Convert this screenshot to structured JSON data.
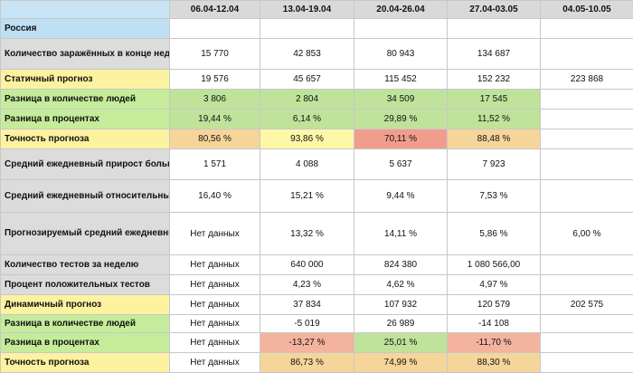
{
  "columns": [
    "",
    "06.04-12.04",
    "13.04-19.04",
    "20.04-26.04",
    "27.04-03.05",
    "04.05-10.05"
  ],
  "section_title": "Россия",
  "rows": [
    {
      "label": "Количество заражённых в конце недели",
      "values": [
        "15 770",
        "42 853",
        "80 943",
        "134 687",
        ""
      ]
    },
    {
      "label": "Статичный прогноз",
      "values": [
        "19 576",
        "45 657",
        "115 452",
        "152 232",
        "223 868"
      ]
    },
    {
      "label": "Разница в количестве людей",
      "values": [
        "3 806",
        "2 804",
        "34 509",
        "17 545",
        ""
      ]
    },
    {
      "label": "Разница в процентах",
      "values": [
        "19,44 %",
        "6,14 %",
        "29,89 %",
        "11,52 %",
        ""
      ]
    },
    {
      "label": "Точность прогноза",
      "values": [
        "80,56 %",
        "93,86 %",
        "70,11 %",
        "88,48 %",
        ""
      ]
    },
    {
      "label": "Средний ежедневный прирост больных",
      "values": [
        "1 571",
        "4 088",
        "5 637",
        "7 923",
        ""
      ]
    },
    {
      "label": "Средний ежедневный относительный рост",
      "values": [
        "16,40 %",
        "15,21 %",
        "9,44 %",
        "7,53 %",
        ""
      ]
    },
    {
      "label": "Прогнозируемый средний ежедневный  относительный рост",
      "values": [
        "Нет данных",
        "13,32 %",
        "14,11 %",
        "5,86 %",
        "6,00 %"
      ]
    },
    {
      "label": "Количество тестов за неделю",
      "values": [
        "Нет данных",
        "640 000",
        "824 380",
        "1 080 566,00",
        ""
      ]
    },
    {
      "label": "Процент положительных тестов",
      "values": [
        "Нет данных",
        "4,23 %",
        "4,62 %",
        "4,97 %",
        ""
      ]
    },
    {
      "label": "Динамичный прогноз",
      "values": [
        "Нет данных",
        "37 834",
        "107 932",
        "120 579",
        "202 575"
      ]
    },
    {
      "label": "Разница в количестве людей",
      "values": [
        "Нет данных",
        "-5 019",
        "26 989",
        "-14 108",
        ""
      ]
    },
    {
      "label": "Разница в процентах",
      "values": [
        "Нет данных",
        "-13,27 %",
        "25,01 %",
        "-11,70 %",
        ""
      ]
    },
    {
      "label": "Точность прогноза",
      "values": [
        "Нет данных",
        "86,73 %",
        "74,99 %",
        "88,30 %",
        ""
      ]
    }
  ],
  "colors": {
    "header_bg": "#d9d9d9",
    "section_bg": "#c9e4f4",
    "label_gray": "#dcdcdc",
    "label_yellow": "#fdf2a0",
    "label_green": "#c4ec9a",
    "cell_green": "#bfe39a",
    "cell_yellow": "#fdf7a8",
    "cell_orange": "#f6d59b",
    "cell_red": "#f19d8e"
  }
}
